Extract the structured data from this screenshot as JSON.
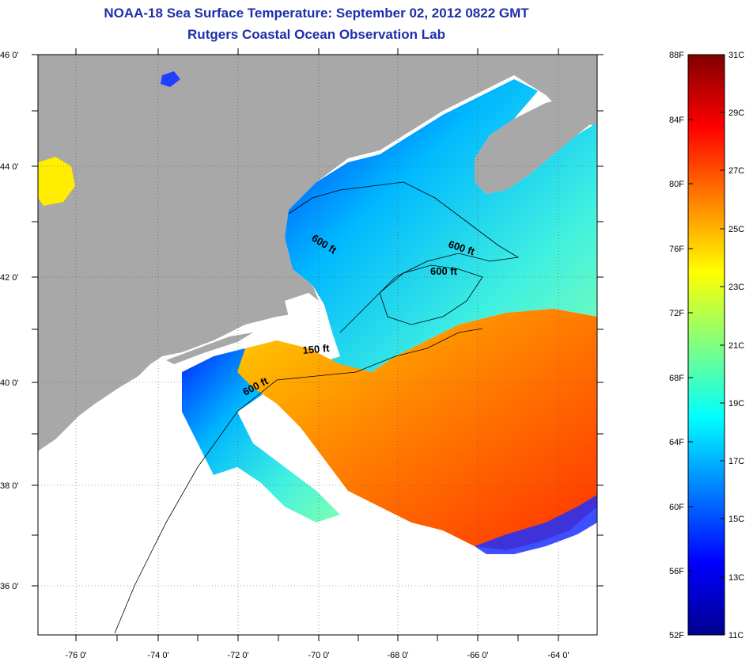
{
  "title_line1": "NOAA-18 Sea Surface Temperature:  September 02, 2012 0822 GMT",
  "title_line2": "Rutgers Coastal Ocean Observation Lab",
  "map": {
    "lat_labels": [
      "46 0'",
      "44 0'",
      "42 0'",
      "40 0'",
      "38 0'",
      "36 0'"
    ],
    "lon_labels": [
      "-76 0'",
      "-74 0'",
      "-72 0'",
      "-70 0'",
      "-68 0'",
      "-66 0'",
      "-64 0'"
    ],
    "isobath_labels": [
      "600 ft",
      "600 ft",
      "600 ft",
      "150 ft",
      "600 ft"
    ],
    "colors": {
      "land": "#a8a8a8",
      "no_data": "#ffffff",
      "isobath": "#000000"
    }
  },
  "colorbar": {
    "fahrenheit": [
      "88F",
      "84F",
      "80F",
      "76F",
      "72F",
      "68F",
      "64F",
      "60F",
      "56F",
      "52F"
    ],
    "celsius": [
      "31C",
      "29C",
      "27C",
      "25C",
      "23C",
      "21C",
      "19C",
      "17C",
      "15C",
      "13C",
      "11C"
    ],
    "gradient": [
      "#00008f",
      "#0000ff",
      "#0080ff",
      "#00ffff",
      "#80ff80",
      "#ffff00",
      "#ff8000",
      "#ff0000",
      "#800000"
    ]
  }
}
